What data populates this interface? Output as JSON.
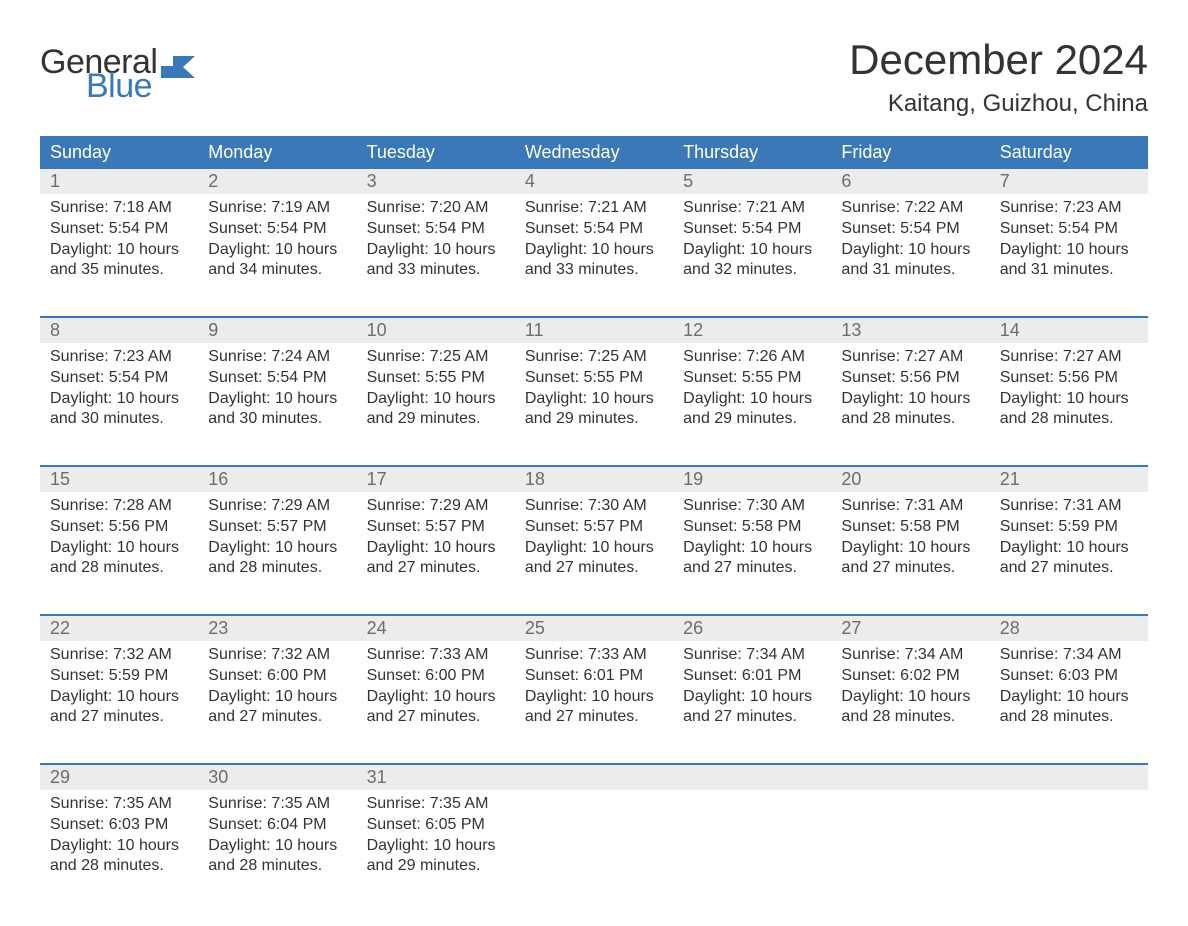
{
  "logo": {
    "word1": "General",
    "word2": "Blue",
    "word1_color": "#333333",
    "word2_color": "#3b78b8"
  },
  "title": "December 2024",
  "location": "Kaitang, Guizhou, China",
  "colors": {
    "header_bg": "#3b78b8",
    "header_text": "#ffffff",
    "daynum_bg": "#ececec",
    "daynum_text": "#6d6d6d",
    "body_text": "#333333",
    "week_divider": "#3b78b8",
    "page_bg": "#ffffff"
  },
  "day_headers": [
    "Sunday",
    "Monday",
    "Tuesday",
    "Wednesday",
    "Thursday",
    "Friday",
    "Saturday"
  ],
  "weeks": [
    [
      {
        "n": "1",
        "sunrise": "7:18 AM",
        "sunset": "5:54 PM",
        "dl1": "Daylight: 10 hours",
        "dl2": "and 35 minutes."
      },
      {
        "n": "2",
        "sunrise": "7:19 AM",
        "sunset": "5:54 PM",
        "dl1": "Daylight: 10 hours",
        "dl2": "and 34 minutes."
      },
      {
        "n": "3",
        "sunrise": "7:20 AM",
        "sunset": "5:54 PM",
        "dl1": "Daylight: 10 hours",
        "dl2": "and 33 minutes."
      },
      {
        "n": "4",
        "sunrise": "7:21 AM",
        "sunset": "5:54 PM",
        "dl1": "Daylight: 10 hours",
        "dl2": "and 33 minutes."
      },
      {
        "n": "5",
        "sunrise": "7:21 AM",
        "sunset": "5:54 PM",
        "dl1": "Daylight: 10 hours",
        "dl2": "and 32 minutes."
      },
      {
        "n": "6",
        "sunrise": "7:22 AM",
        "sunset": "5:54 PM",
        "dl1": "Daylight: 10 hours",
        "dl2": "and 31 minutes."
      },
      {
        "n": "7",
        "sunrise": "7:23 AM",
        "sunset": "5:54 PM",
        "dl1": "Daylight: 10 hours",
        "dl2": "and 31 minutes."
      }
    ],
    [
      {
        "n": "8",
        "sunrise": "7:23 AM",
        "sunset": "5:54 PM",
        "dl1": "Daylight: 10 hours",
        "dl2": "and 30 minutes."
      },
      {
        "n": "9",
        "sunrise": "7:24 AM",
        "sunset": "5:54 PM",
        "dl1": "Daylight: 10 hours",
        "dl2": "and 30 minutes."
      },
      {
        "n": "10",
        "sunrise": "7:25 AM",
        "sunset": "5:55 PM",
        "dl1": "Daylight: 10 hours",
        "dl2": "and 29 minutes."
      },
      {
        "n": "11",
        "sunrise": "7:25 AM",
        "sunset": "5:55 PM",
        "dl1": "Daylight: 10 hours",
        "dl2": "and 29 minutes."
      },
      {
        "n": "12",
        "sunrise": "7:26 AM",
        "sunset": "5:55 PM",
        "dl1": "Daylight: 10 hours",
        "dl2": "and 29 minutes."
      },
      {
        "n": "13",
        "sunrise": "7:27 AM",
        "sunset": "5:56 PM",
        "dl1": "Daylight: 10 hours",
        "dl2": "and 28 minutes."
      },
      {
        "n": "14",
        "sunrise": "7:27 AM",
        "sunset": "5:56 PM",
        "dl1": "Daylight: 10 hours",
        "dl2": "and 28 minutes."
      }
    ],
    [
      {
        "n": "15",
        "sunrise": "7:28 AM",
        "sunset": "5:56 PM",
        "dl1": "Daylight: 10 hours",
        "dl2": "and 28 minutes."
      },
      {
        "n": "16",
        "sunrise": "7:29 AM",
        "sunset": "5:57 PM",
        "dl1": "Daylight: 10 hours",
        "dl2": "and 28 minutes."
      },
      {
        "n": "17",
        "sunrise": "7:29 AM",
        "sunset": "5:57 PM",
        "dl1": "Daylight: 10 hours",
        "dl2": "and 27 minutes."
      },
      {
        "n": "18",
        "sunrise": "7:30 AM",
        "sunset": "5:57 PM",
        "dl1": "Daylight: 10 hours",
        "dl2": "and 27 minutes."
      },
      {
        "n": "19",
        "sunrise": "7:30 AM",
        "sunset": "5:58 PM",
        "dl1": "Daylight: 10 hours",
        "dl2": "and 27 minutes."
      },
      {
        "n": "20",
        "sunrise": "7:31 AM",
        "sunset": "5:58 PM",
        "dl1": "Daylight: 10 hours",
        "dl2": "and 27 minutes."
      },
      {
        "n": "21",
        "sunrise": "7:31 AM",
        "sunset": "5:59 PM",
        "dl1": "Daylight: 10 hours",
        "dl2": "and 27 minutes."
      }
    ],
    [
      {
        "n": "22",
        "sunrise": "7:32 AM",
        "sunset": "5:59 PM",
        "dl1": "Daylight: 10 hours",
        "dl2": "and 27 minutes."
      },
      {
        "n": "23",
        "sunrise": "7:32 AM",
        "sunset": "6:00 PM",
        "dl1": "Daylight: 10 hours",
        "dl2": "and 27 minutes."
      },
      {
        "n": "24",
        "sunrise": "7:33 AM",
        "sunset": "6:00 PM",
        "dl1": "Daylight: 10 hours",
        "dl2": "and 27 minutes."
      },
      {
        "n": "25",
        "sunrise": "7:33 AM",
        "sunset": "6:01 PM",
        "dl1": "Daylight: 10 hours",
        "dl2": "and 27 minutes."
      },
      {
        "n": "26",
        "sunrise": "7:34 AM",
        "sunset": "6:01 PM",
        "dl1": "Daylight: 10 hours",
        "dl2": "and 27 minutes."
      },
      {
        "n": "27",
        "sunrise": "7:34 AM",
        "sunset": "6:02 PM",
        "dl1": "Daylight: 10 hours",
        "dl2": "and 28 minutes."
      },
      {
        "n": "28",
        "sunrise": "7:34 AM",
        "sunset": "6:03 PM",
        "dl1": "Daylight: 10 hours",
        "dl2": "and 28 minutes."
      }
    ],
    [
      {
        "n": "29",
        "sunrise": "7:35 AM",
        "sunset": "6:03 PM",
        "dl1": "Daylight: 10 hours",
        "dl2": "and 28 minutes."
      },
      {
        "n": "30",
        "sunrise": "7:35 AM",
        "sunset": "6:04 PM",
        "dl1": "Daylight: 10 hours",
        "dl2": "and 28 minutes."
      },
      {
        "n": "31",
        "sunrise": "7:35 AM",
        "sunset": "6:05 PM",
        "dl1": "Daylight: 10 hours",
        "dl2": "and 29 minutes."
      },
      null,
      null,
      null,
      null
    ]
  ],
  "labels": {
    "sunrise": "Sunrise: ",
    "sunset": "Sunset: "
  }
}
